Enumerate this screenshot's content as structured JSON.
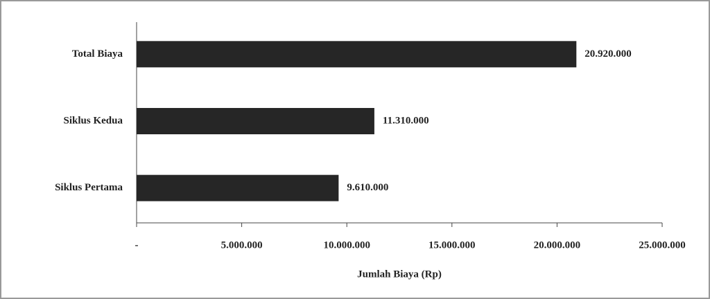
{
  "chart_data": {
    "type": "hbar",
    "categories": [
      "Total Biaya",
      "Siklus Kedua",
      "Siklus Pertama"
    ],
    "values": [
      20920000,
      11310000,
      9610000
    ],
    "value_labels": [
      "20.920.000",
      "11.310.000",
      "9.610.000"
    ],
    "color": "#262626",
    "xlim": [
      0,
      25000000
    ],
    "xticks": [
      {
        "value": 0,
        "label": "-"
      },
      {
        "value": 5000000,
        "label": "5.000.000"
      },
      {
        "value": 10000000,
        "label": "10.000.000"
      },
      {
        "value": 15000000,
        "label": "15.000.000"
      },
      {
        "value": 20000000,
        "label": "20.000.000"
      },
      {
        "value": 25000000,
        "label": "25.000.000"
      }
    ],
    "x_label": "Jumlah Biaya (Rp)"
  }
}
